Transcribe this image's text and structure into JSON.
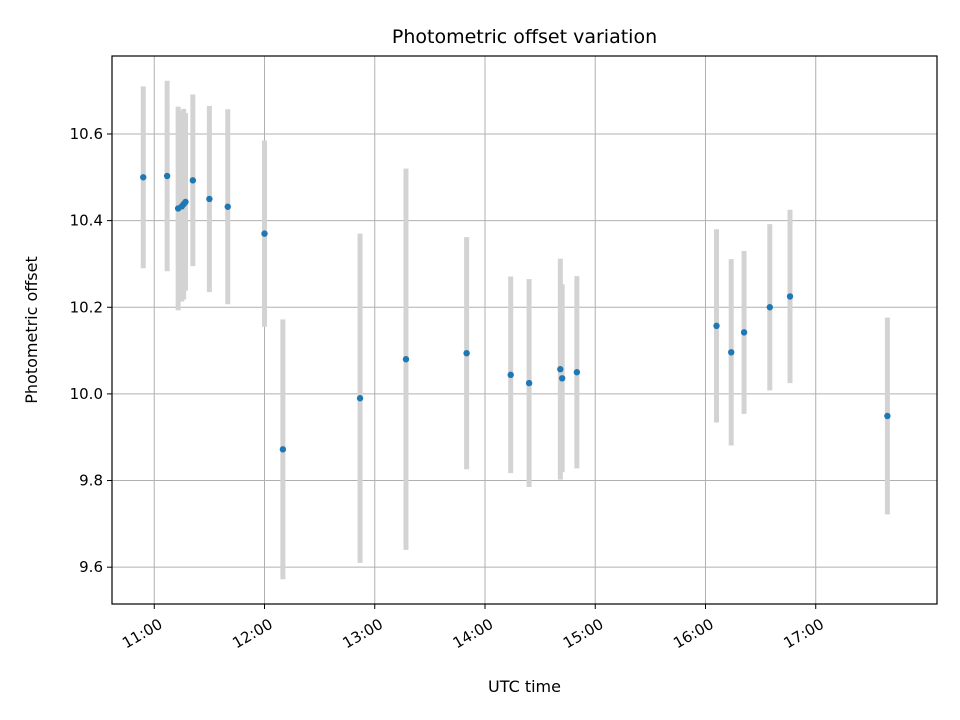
{
  "chart_data": {
    "type": "scatter",
    "title": "Photometric offset variation",
    "xlabel": "UTC time",
    "ylabel": "Photometric offset",
    "x_tick_labels": [
      "11:00",
      "12:00",
      "13:00",
      "14:00",
      "15:00",
      "16:00",
      "17:00"
    ],
    "y_tick_labels": [
      "9.6",
      "9.8",
      "10.0",
      "10.2",
      "10.4",
      "10.6"
    ],
    "x_ticks": [
      "11:00",
      "12:00",
      "13:00",
      "14:00",
      "15:00",
      "16:00",
      "17:00"
    ],
    "y_ticks": [
      9.6,
      9.8,
      10.0,
      10.2,
      10.4,
      10.6
    ],
    "xlim": [
      "10:37",
      "18:06"
    ],
    "ylim": [
      9.515,
      10.78
    ],
    "grid": true,
    "colors": {
      "marker": "#1f77b4",
      "errorbar": "#d3d3d3",
      "grid": "#b0b0b0"
    },
    "points": [
      {
        "x": "10:54",
        "y": 10.5,
        "err": 0.21
      },
      {
        "x": "11:07",
        "y": 10.503,
        "err": 0.22
      },
      {
        "x": "11:13",
        "y": 10.428,
        "err": 0.235
      },
      {
        "x": "11:15",
        "y": 10.433,
        "err": 0.22
      },
      {
        "x": "11:16",
        "y": 10.438,
        "err": 0.22
      },
      {
        "x": "11:17",
        "y": 10.443,
        "err": 0.205
      },
      {
        "x": "11:21",
        "y": 10.493,
        "err": 0.198
      },
      {
        "x": "11:30",
        "y": 10.45,
        "err": 0.215
      },
      {
        "x": "11:40",
        "y": 10.432,
        "err": 0.225
      },
      {
        "x": "12:00",
        "y": 10.37,
        "err": 0.215
      },
      {
        "x": "12:10",
        "y": 9.872,
        "err": 0.3
      },
      {
        "x": "12:52",
        "y": 9.99,
        "err": 0.38
      },
      {
        "x": "13:17",
        "y": 10.08,
        "err": 0.44
      },
      {
        "x": "13:50",
        "y": 10.094,
        "err": 0.268
      },
      {
        "x": "14:14",
        "y": 10.044,
        "err": 0.227
      },
      {
        "x": "14:24",
        "y": 10.025,
        "err": 0.24
      },
      {
        "x": "14:41",
        "y": 10.057,
        "err": 0.255
      },
      {
        "x": "14:42",
        "y": 10.036,
        "err": 0.217
      },
      {
        "x": "14:50",
        "y": 10.05,
        "err": 0.222
      },
      {
        "x": "16:06",
        "y": 10.157,
        "err": 0.223
      },
      {
        "x": "16:14",
        "y": 10.096,
        "err": 0.215
      },
      {
        "x": "16:21",
        "y": 10.142,
        "err": 0.188
      },
      {
        "x": "16:35",
        "y": 10.2,
        "err": 0.192
      },
      {
        "x": "16:46",
        "y": 10.225,
        "err": 0.2
      },
      {
        "x": "17:39",
        "y": 9.949,
        "err": 0.227
      }
    ]
  }
}
